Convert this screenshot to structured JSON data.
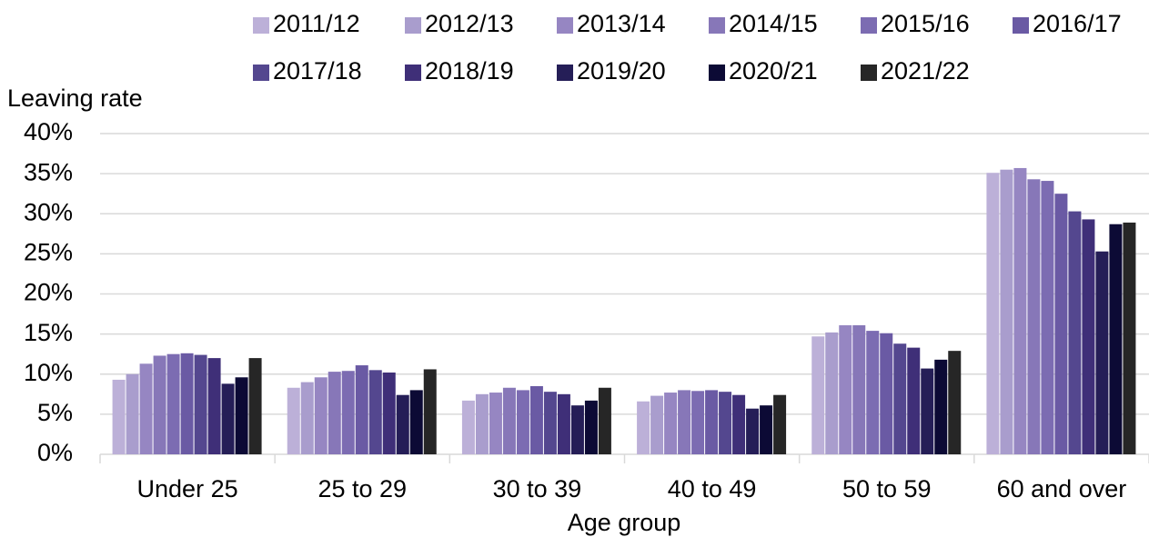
{
  "chart_data": {
    "type": "bar",
    "y_label": "Leaving rate",
    "x_label": "Age group",
    "categories": [
      "Under 25",
      "25 to 29",
      "30 to 39",
      "40 to 49",
      "50 to 59",
      "60 and over"
    ],
    "series": [
      {
        "name": "2011/12",
        "color": "#bcb0d8",
        "values": [
          9.3,
          8.3,
          6.7,
          6.6,
          14.7,
          35.1
        ]
      },
      {
        "name": "2012/13",
        "color": "#a99dcd",
        "values": [
          10.0,
          9.0,
          7.5,
          7.3,
          15.2,
          35.5
        ]
      },
      {
        "name": "2013/14",
        "color": "#9686c2",
        "values": [
          11.3,
          9.6,
          7.7,
          7.7,
          16.1,
          35.7
        ]
      },
      {
        "name": "2014/15",
        "color": "#8777b8",
        "values": [
          12.3,
          10.3,
          8.3,
          8.0,
          16.1,
          34.3
        ]
      },
      {
        "name": "2015/16",
        "color": "#7c6cb2",
        "values": [
          12.5,
          10.4,
          8.0,
          7.9,
          15.4,
          34.1
        ]
      },
      {
        "name": "2016/17",
        "color": "#6a5aa4",
        "values": [
          12.6,
          11.1,
          8.5,
          8.0,
          15.1,
          32.5
        ]
      },
      {
        "name": "2017/18",
        "color": "#54478f",
        "values": [
          12.4,
          10.5,
          7.8,
          7.8,
          13.8,
          30.3
        ]
      },
      {
        "name": "2018/19",
        "color": "#3f2f78",
        "values": [
          12.0,
          10.2,
          7.5,
          7.4,
          13.3,
          29.3
        ]
      },
      {
        "name": "2019/20",
        "color": "#251e57",
        "values": [
          8.8,
          7.4,
          6.1,
          5.7,
          10.7,
          25.3
        ]
      },
      {
        "name": "2020/21",
        "color": "#0c0a35",
        "values": [
          9.6,
          8.0,
          6.7,
          6.1,
          11.8,
          28.7
        ]
      },
      {
        "name": "2021/22",
        "color": "#262626",
        "values": [
          12.0,
          10.6,
          8.3,
          7.4,
          12.9,
          28.9
        ]
      }
    ],
    "ylim": [
      0,
      40
    ],
    "yticks": [
      {
        "value": 0,
        "label": "0%"
      },
      {
        "value": 5,
        "label": "5%"
      },
      {
        "value": 10,
        "label": "10%"
      },
      {
        "value": 15,
        "label": "15%"
      },
      {
        "value": 20,
        "label": "20%"
      },
      {
        "value": 25,
        "label": "25%"
      },
      {
        "value": 30,
        "label": "30%"
      },
      {
        "value": 35,
        "label": "35%"
      },
      {
        "value": 40,
        "label": "40%"
      }
    ],
    "grid": true
  }
}
